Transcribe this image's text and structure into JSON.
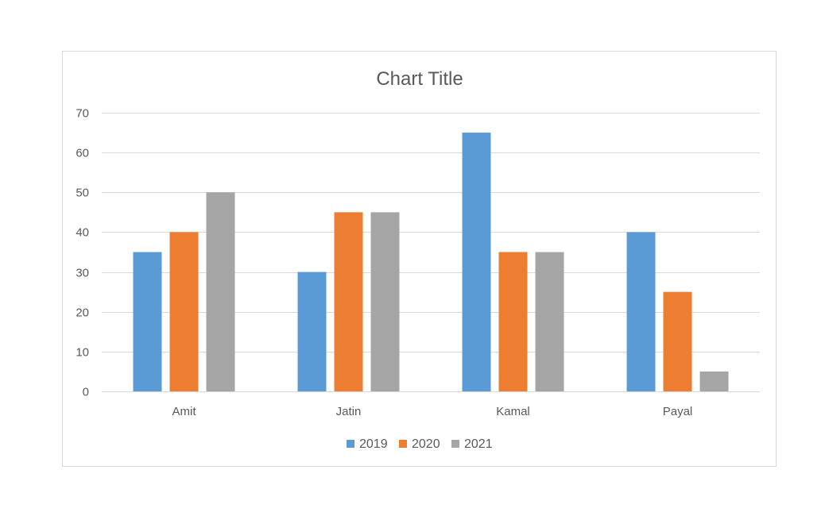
{
  "chart_data": {
    "type": "bar",
    "title": "Chart Title",
    "xlabel": "",
    "ylabel": "",
    "categories": [
      "Amit",
      "Jatin",
      "Kamal",
      "Payal"
    ],
    "series": [
      {
        "name": "2019",
        "color": "#5b9bd5",
        "values": [
          35,
          30,
          65,
          40
        ]
      },
      {
        "name": "2020",
        "color": "#ed7d31",
        "values": [
          40,
          45,
          35,
          25
        ]
      },
      {
        "name": "2021",
        "color": "#a5a5a5",
        "values": [
          50,
          45,
          35,
          5
        ]
      }
    ],
    "ylim": [
      0,
      70
    ],
    "yticks": [
      0,
      10,
      20,
      30,
      40,
      50,
      60,
      70
    ],
    "grid": true,
    "legend_position": "bottom"
  }
}
